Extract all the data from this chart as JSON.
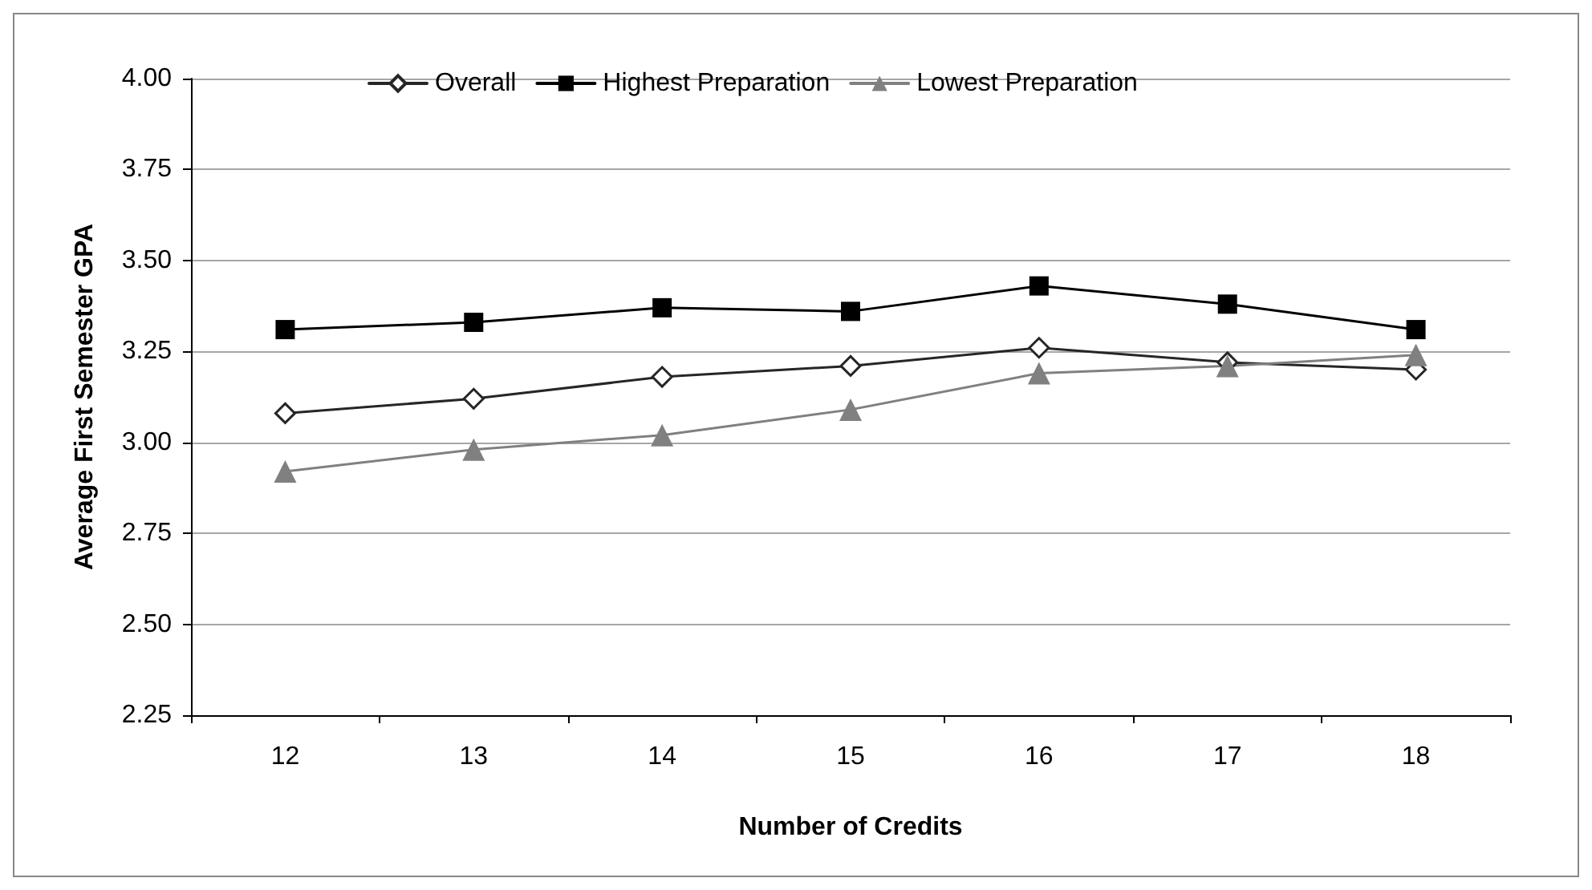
{
  "chart_data": {
    "type": "line",
    "xlabel": "Number of Credits",
    "ylabel": "Average First Semester GPA",
    "categories": [
      "12",
      "13",
      "14",
      "15",
      "16",
      "17",
      "18"
    ],
    "series": [
      {
        "name": "Overall",
        "color": "#262626",
        "marker": "diamond",
        "values": [
          3.08,
          3.12,
          3.18,
          3.21,
          3.26,
          3.22,
          3.2
        ]
      },
      {
        "name": "Highest Preparation",
        "color": "#000000",
        "marker": "square",
        "values": [
          3.31,
          3.33,
          3.37,
          3.36,
          3.43,
          3.38,
          3.31
        ]
      },
      {
        "name": "Lowest Preparation",
        "color": "#808080",
        "marker": "triangle",
        "values": [
          2.92,
          2.98,
          3.02,
          3.09,
          3.19,
          3.21,
          3.24
        ]
      }
    ],
    "ylim": [
      2.25,
      4.0
    ],
    "yticks": [
      2.25,
      {
        "value": 2.5,
        "label": "2.50"
      },
      2.75,
      {
        "value": 3,
        "label": "3.00"
      },
      3.25,
      {
        "value": 3.5,
        "label": "3.50"
      },
      3.75,
      {
        "value": 4,
        "label": "4.00"
      }
    ],
    "grid": "y",
    "legend": "top"
  }
}
